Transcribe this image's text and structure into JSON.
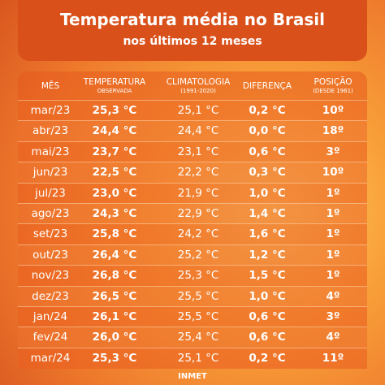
{
  "header": {
    "title": "Temperatura média no Brasil",
    "subtitle": "nos últimos 12 meses"
  },
  "table": {
    "columns": [
      [
        "MÊS"
      ],
      [
        "TEMPERATURA",
        "OBSERVADA"
      ],
      [
        "CLIMATOLOGIA",
        "(1991-2020)"
      ],
      [
        "DIFERENÇA"
      ],
      [
        "POSIÇÃO",
        "(DESDE 1961)"
      ]
    ],
    "rows": [
      [
        "mar/23",
        "25,3 °C",
        "25,1 °C",
        "0,2 °C",
        "10º"
      ],
      [
        "abr/23",
        "24,4 °C",
        "24,4 °C",
        "0,0 °C",
        "18º"
      ],
      [
        "mai/23",
        "23,7 °C",
        "23,1 °C",
        "0,6 °C",
        "3º"
      ],
      [
        "jun/23",
        "22,5 °C",
        "22,2 °C",
        "0,3 °C",
        "10º"
      ],
      [
        "jul/23",
        "23,0 °C",
        "21,9 °C",
        "1,0 °C",
        "1º"
      ],
      [
        "ago/23",
        "24,3 °C",
        "22,9 °C",
        "1,4 °C",
        "1º"
      ],
      [
        "set/23",
        "25,8 °C",
        "24,2 °C",
        "1,6 °C",
        "1º"
      ],
      [
        "out/23",
        "26,4 °C",
        "25,2 °C",
        "1,2 °C",
        "1º"
      ],
      [
        "nov/23",
        "26,8 °C",
        "25,3 °C",
        "1,5 °C",
        "1º"
      ],
      [
        "dez/23",
        "26,5 °C",
        "25,5 °C",
        "1,0 °C",
        "4º"
      ],
      [
        "jan/24",
        "26,1 °C",
        "25,5 °C",
        "0,6 °C",
        "3º"
      ],
      [
        "fev/24",
        "26,0 °C",
        "25,4 °C",
        "0,6 °C",
        "4º"
      ],
      [
        "mar/24",
        "25,3 °C",
        "25,1 °C",
        "0,2 °C",
        "11º"
      ]
    ]
  },
  "footer": "INMET"
}
